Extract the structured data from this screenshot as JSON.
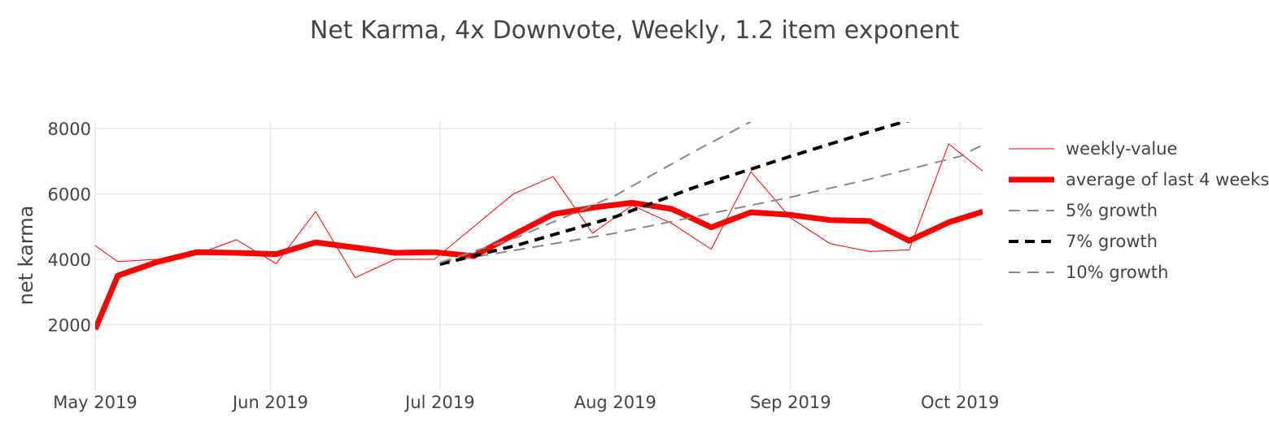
{
  "chart_data": {
    "type": "line",
    "title": "Net Karma, 4x Downvote, Weekly, 1.2 item exponent",
    "ylabel": "net karma",
    "xlabel": "",
    "ylim": [
      0,
      8200
    ],
    "xlim": [
      "2019-05-01",
      "2019-10-05"
    ],
    "yticks": [
      2000,
      4000,
      6000,
      8000
    ],
    "xticks": [
      "2019-05-01",
      "2019-06-01",
      "2019-07-01",
      "2019-08-01",
      "2019-09-01",
      "2019-10-01"
    ],
    "xtick_labels": [
      "May 2019",
      "Jun 2019",
      "Jul 2019",
      "Aug 2019",
      "Sep 2019",
      "Oct 2019"
    ],
    "grid": true,
    "legend_position": "right",
    "series": [
      {
        "name": "weekly-value",
        "color": "#ff0000",
        "width": "thin",
        "dash": "solid",
        "x": [
          "2019-05-01",
          "2019-05-05",
          "2019-05-12",
          "2019-05-19",
          "2019-05-26",
          "2019-06-02",
          "2019-06-09",
          "2019-06-16",
          "2019-06-23",
          "2019-06-30",
          "2019-07-07",
          "2019-07-14",
          "2019-07-21",
          "2019-07-28",
          "2019-08-04",
          "2019-08-11",
          "2019-08-18",
          "2019-08-25",
          "2019-09-01",
          "2019-09-08",
          "2019-09-15",
          "2019-09-22",
          "2019-09-29",
          "2019-10-05"
        ],
        "y": [
          4420,
          3930,
          4000,
          4150,
          4600,
          3870,
          5460,
          3440,
          4000,
          4000,
          5000,
          6000,
          6530,
          4800,
          5650,
          5100,
          4310,
          6680,
          5270,
          4480,
          4240,
          4290,
          7530,
          6700
        ]
      },
      {
        "name": "average of last 4 weeks",
        "color": "#ff0000",
        "width": "thick",
        "dash": "solid",
        "x": [
          "2019-05-01",
          "2019-05-05",
          "2019-05-12",
          "2019-05-19",
          "2019-05-26",
          "2019-06-02",
          "2019-06-09",
          "2019-06-16",
          "2019-06-23",
          "2019-06-30",
          "2019-07-07",
          "2019-07-14",
          "2019-07-21",
          "2019-07-28",
          "2019-08-04",
          "2019-08-11",
          "2019-08-18",
          "2019-08-25",
          "2019-09-01",
          "2019-09-08",
          "2019-09-15",
          "2019-09-22",
          "2019-09-29",
          "2019-10-05"
        ],
        "y": [
          1860,
          3500,
          3920,
          4220,
          4200,
          4160,
          4520,
          4360,
          4200,
          4220,
          4100,
          4750,
          5380,
          5580,
          5730,
          5540,
          4980,
          5440,
          5360,
          5200,
          5170,
          4570,
          5130,
          5460
        ]
      },
      {
        "name": "5% growth",
        "color": "#888888",
        "width": "medium",
        "dash": "dashed",
        "x": [
          "2019-07-01",
          "2019-07-15",
          "2019-08-01",
          "2019-08-15",
          "2019-09-01",
          "2019-09-15",
          "2019-10-01",
          "2019-10-05"
        ],
        "y": [
          3900,
          4300,
          4800,
          5300,
          5900,
          6450,
          7150,
          7500
        ]
      },
      {
        "name": "7% growth",
        "color": "#000000",
        "width": "thick",
        "dash": "dashed",
        "x": [
          "2019-07-01",
          "2019-07-15",
          "2019-08-01",
          "2019-08-15",
          "2019-09-01",
          "2019-09-15",
          "2019-09-22"
        ],
        "y": [
          3850,
          4450,
          5300,
          6200,
          7150,
          7900,
          8250
        ]
      },
      {
        "name": "10% growth",
        "color": "#888888",
        "width": "medium",
        "dash": "dashed",
        "x": [
          "2019-07-01",
          "2019-07-15",
          "2019-08-01",
          "2019-08-15",
          "2019-08-26"
        ],
        "y": [
          3900,
          4700,
          5950,
          7300,
          8300
        ]
      }
    ],
    "legend": [
      {
        "label": "weekly-value",
        "color": "#ff0000",
        "width": "thin",
        "dash": "solid"
      },
      {
        "label": "average of last 4 weeks",
        "color": "#ff0000",
        "width": "thick",
        "dash": "solid"
      },
      {
        "label": "5% growth",
        "color": "#888888",
        "width": "medium",
        "dash": "dashed"
      },
      {
        "label": "7% growth",
        "color": "#000000",
        "width": "thick",
        "dash": "dashed"
      },
      {
        "label": "10% growth",
        "color": "#888888",
        "width": "medium",
        "dash": "dashed"
      }
    ]
  }
}
